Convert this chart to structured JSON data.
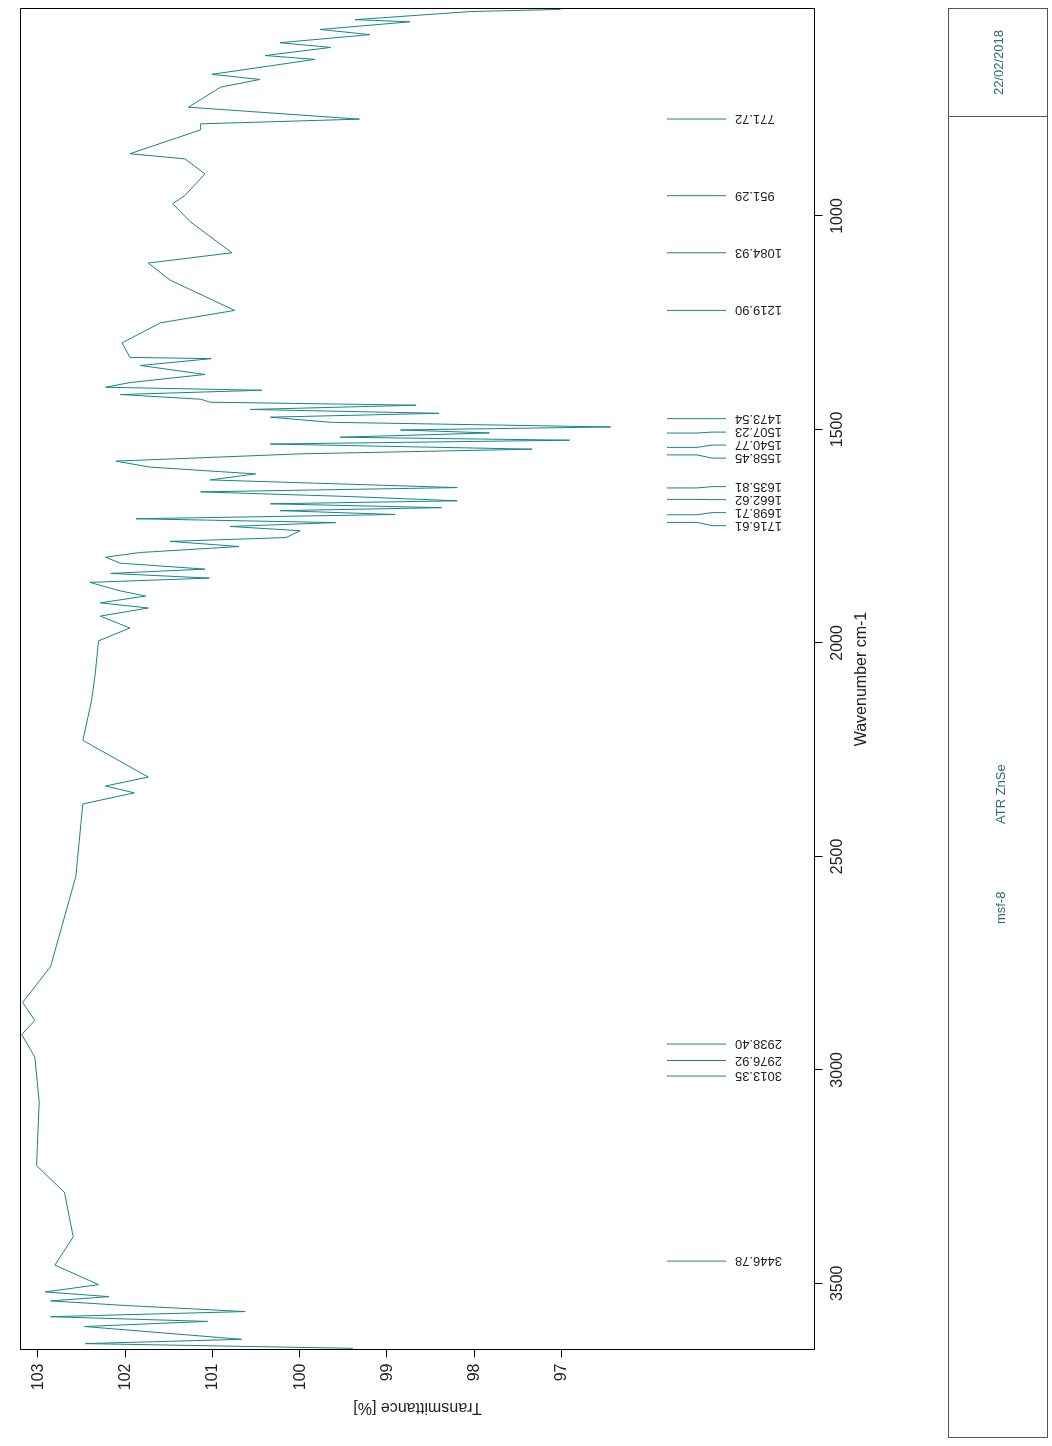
{
  "chart_data": {
    "type": "line",
    "xlabel": "Transmittance [%]",
    "ylabel": "Wavenumber cm-1",
    "color": "#17858a",
    "xlim": [
      103.2,
      94.1
    ],
    "ylim": [
      3655,
      514
    ],
    "xticks": [
      103,
      102,
      101,
      100,
      99,
      98,
      97
    ],
    "yticks": [
      3500,
      3000,
      2500,
      2000,
      1500,
      1000
    ],
    "values": [
      515,
      520,
      539,
      544,
      562,
      574,
      593,
      604,
      623,
      632,
      667,
      679,
      697,
      744,
      772,
      783,
      797,
      853,
      865,
      900,
      951,
      970,
      1012,
      1085,
      1109,
      1149,
      1220,
      1249,
      1296,
      1330,
      1333,
      1349,
      1370,
      1389,
      1400,
      1407,
      1417,
      1428,
      1435,
      1442,
      1452,
      1461,
      1470,
      1482,
      1493,
      1500,
      1507,
      1517,
      1524,
      1533,
      1545,
      1556,
      1573,
      1587,
      1603,
      1617,
      1635,
      1645,
      1656,
      1666,
      1673,
      1682,
      1689,
      1698,
      1708,
      1717,
      1726,
      1736,
      1752,
      1761,
      1773,
      1787,
      1798,
      1812,
      1826,
      1836,
      1847,
      1857,
      1877,
      1889,
      1905,
      1917,
      1936,
      1964,
      1994,
      2075,
      2134,
      2227,
      2313,
      2334,
      2350,
      2376,
      2546,
      2757,
      2841,
      2883,
      2916,
      2969,
      3074,
      3223,
      3286,
      3390,
      3456,
      3502,
      3519,
      3530,
      3540,
      3551,
      3565,
      3577,
      3588,
      3600,
      3630,
      3640,
      3651
    ],
    "x": [
      97.01,
      98.04,
      99.36,
      98.73,
      99.76,
      99.19,
      100.22,
      99.64,
      100.39,
      99.82,
      101.0,
      100.45,
      100.9,
      101.27,
      99.31,
      101.13,
      101.13,
      101.94,
      101.31,
      101.08,
      101.31,
      101.45,
      101.25,
      100.77,
      101.73,
      101.48,
      100.74,
      101.59,
      102.03,
      101.94,
      101.01,
      101.82,
      101.08,
      101.94,
      102.22,
      100.43,
      102.05,
      101.13,
      101.02,
      98.66,
      100.56,
      98.4,
      100.33,
      99.64,
      96.43,
      98.84,
      97.82,
      99.53,
      96.9,
      100.33,
      97.33,
      99.99,
      102.1,
      101.71,
      100.5,
      101.02,
      98.19,
      101.13,
      99.42,
      98.19,
      100.33,
      98.37,
      100.22,
      98.9,
      101.87,
      99.58,
      100.79,
      99.99,
      100.15,
      101.48,
      100.69,
      101.82,
      102.22,
      102.05,
      101.08,
      102.16,
      101.03,
      102.4,
      102.05,
      101.76,
      102.28,
      101.73,
      102.28,
      101.94,
      102.3,
      102.34,
      102.38,
      102.48,
      101.73,
      102.22,
      101.89,
      102.48,
      102.56,
      102.85,
      103.17,
      103.03,
      103.18,
      103.03,
      102.98,
      103.01,
      102.69,
      102.59,
      102.8,
      102.3,
      102.91,
      102.18,
      102.85,
      101.97,
      100.62,
      102.85,
      101.05,
      102.46,
      100.66,
      102.45,
      99.39
    ],
    "annotations": [
      "771.72",
      "951.29",
      "1084.93",
      "1219.90",
      "1473.54",
      "1507.23",
      "1540.77",
      "1558.45",
      "1635.81",
      "1662.62",
      "1698.71",
      "1716.61",
      "2938.40",
      "2976.92",
      "3013.35",
      "3446.78",
      "msf-8",
      "ATR ZnSe",
      "22/02/2018"
    ]
  }
}
